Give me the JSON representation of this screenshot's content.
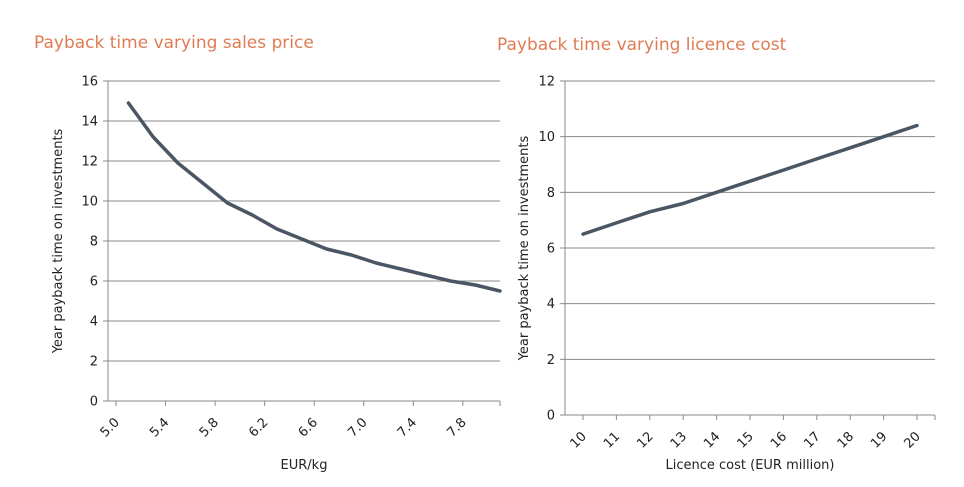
{
  "chart_data": [
    {
      "type": "line",
      "title": "Payback time varying sales price",
      "xlabel": "EUR/kg",
      "ylabel": "Year payback time on investments",
      "xlim": [
        5.0,
        8.0
      ],
      "ylim": [
        0,
        16
      ],
      "x_ticks": [
        5.0,
        5.4,
        5.8,
        6.2,
        6.6,
        7.0,
        7.4,
        7.8
      ],
      "x_tick_labels": [
        "5.0",
        "5.4",
        "5.8",
        "6.2",
        "6.6",
        "7.0",
        "7.4",
        "7.8"
      ],
      "y_ticks": [
        0,
        2,
        4,
        6,
        8,
        10,
        12,
        14,
        16
      ],
      "grid": "horizontal",
      "color": "#4a5663",
      "series": [
        {
          "x": [
            5.1,
            5.3,
            5.5,
            5.7,
            5.9,
            6.1,
            6.3,
            6.5,
            6.7,
            6.9,
            7.1,
            7.3,
            7.5,
            7.7,
            7.9,
            8.1
          ],
          "values": [
            14.9,
            13.2,
            11.9,
            10.9,
            9.9,
            9.3,
            8.6,
            8.1,
            7.6,
            7.3,
            6.9,
            6.6,
            6.3,
            6.0,
            5.8,
            5.5
          ]
        }
      ]
    },
    {
      "type": "line",
      "title": "Payback time varying licence cost",
      "xlabel": "Licence cost (EUR million)",
      "ylabel": "Year payback time on investments",
      "categories": [
        "10",
        "11",
        "12",
        "13",
        "14",
        "15",
        "16",
        "17",
        "18",
        "19",
        "20"
      ],
      "ylim": [
        0,
        12
      ],
      "y_ticks": [
        0,
        2,
        4,
        6,
        8,
        10,
        12
      ],
      "grid": "horizontal",
      "color": "#4a5663",
      "series": [
        {
          "values": [
            6.5,
            6.9,
            7.3,
            7.6,
            8.0,
            8.4,
            8.8,
            9.2,
            9.6,
            10.0,
            10.4
          ]
        }
      ]
    }
  ]
}
